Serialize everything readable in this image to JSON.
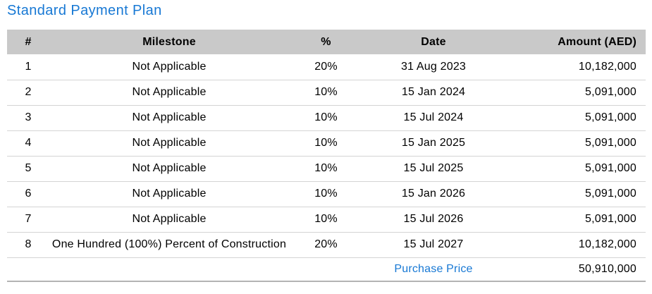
{
  "page": {
    "title": "Standard Payment Plan"
  },
  "colors": {
    "accent_blue": "#1778d4",
    "header_bg": "#c9c9c9",
    "row_divider": "#d4d4d4",
    "table_bottom_border": "#b3b3b3",
    "text": "#000000"
  },
  "table": {
    "columns": [
      {
        "key": "num",
        "label": "#"
      },
      {
        "key": "milestone",
        "label": "Milestone"
      },
      {
        "key": "pct",
        "label": "%"
      },
      {
        "key": "date",
        "label": "Date"
      },
      {
        "key": "amount",
        "label": "Amount (AED)"
      }
    ],
    "rows": [
      {
        "num": "1",
        "milestone": "Not Applicable",
        "pct": "20%",
        "date": "31 Aug 2023",
        "amount": "10,182,000"
      },
      {
        "num": "2",
        "milestone": "Not Applicable",
        "pct": "10%",
        "date": "15 Jan 2024",
        "amount": "5,091,000"
      },
      {
        "num": "3",
        "milestone": "Not Applicable",
        "pct": "10%",
        "date": "15 Jul 2024",
        "amount": "5,091,000"
      },
      {
        "num": "4",
        "milestone": "Not Applicable",
        "pct": "10%",
        "date": "15 Jan 2025",
        "amount": "5,091,000"
      },
      {
        "num": "5",
        "milestone": "Not Applicable",
        "pct": "10%",
        "date": "15 Jul 2025",
        "amount": "5,091,000"
      },
      {
        "num": "6",
        "milestone": "Not Applicable",
        "pct": "10%",
        "date": "15 Jan 2026",
        "amount": "5,091,000"
      },
      {
        "num": "7",
        "milestone": "Not Applicable",
        "pct": "10%",
        "date": "15 Jul 2026",
        "amount": "5,091,000"
      },
      {
        "num": "8",
        "milestone": "One Hundred (100%) Percent of Construction",
        "pct": "20%",
        "date": "15 Jul 2027",
        "amount": "10,182,000"
      }
    ],
    "footer": {
      "label": "Purchase Price",
      "amount": "50,910,000"
    }
  }
}
